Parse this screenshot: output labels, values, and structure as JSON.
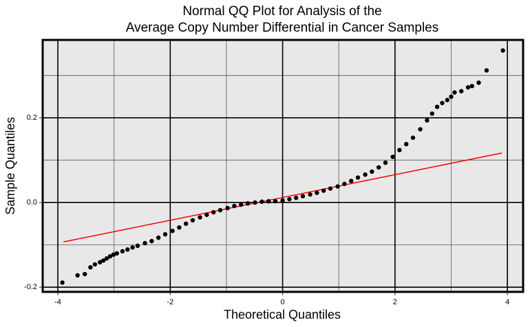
{
  "chart_data": {
    "type": "scatter",
    "title": [
      "Normal QQ Plot for Analysis of the",
      "Average Copy Number Differential in Cancer Samples"
    ],
    "x_label": "Theoretical Quantiles",
    "y_label": "Sample Quantiles",
    "x": [
      -3.92,
      -3.65,
      -3.52,
      -3.42,
      -3.34,
      -3.25,
      -3.19,
      -3.13,
      -3.07,
      -3.01,
      -2.95,
      -2.85,
      -2.76,
      -2.67,
      -2.58,
      -2.45,
      -2.33,
      -2.21,
      -2.09,
      -1.96,
      -1.84,
      -1.72,
      -1.6,
      -1.47,
      -1.35,
      -1.23,
      -1.11,
      -0.98,
      -0.86,
      -0.74,
      -0.62,
      -0.49,
      -0.37,
      -0.25,
      -0.13,
      0.0,
      0.12,
      0.24,
      0.36,
      0.49,
      0.61,
      0.73,
      0.85,
      0.98,
      1.1,
      1.22,
      1.34,
      1.47,
      1.59,
      1.71,
      1.83,
      1.96,
      2.08,
      2.2,
      2.32,
      2.45,
      2.57,
      2.66,
      2.75,
      2.84,
      2.93,
      3.0,
      3.06,
      3.18,
      3.3,
      3.37,
      3.49,
      3.63,
      3.92
    ],
    "values": [
      -0.189,
      -0.172,
      -0.169,
      -0.153,
      -0.146,
      -0.141,
      -0.137,
      -0.132,
      -0.127,
      -0.123,
      -0.12,
      -0.115,
      -0.111,
      -0.106,
      -0.102,
      -0.096,
      -0.091,
      -0.083,
      -0.075,
      -0.067,
      -0.059,
      -0.05,
      -0.042,
      -0.035,
      -0.029,
      -0.023,
      -0.018,
      -0.013,
      -0.008,
      -0.005,
      -0.002,
      0.0,
      0.002,
      0.003,
      0.003,
      0.005,
      0.008,
      0.011,
      0.015,
      0.019,
      0.023,
      0.028,
      0.033,
      0.038,
      0.044,
      0.051,
      0.059,
      0.066,
      0.073,
      0.083,
      0.094,
      0.108,
      0.124,
      0.138,
      0.153,
      0.173,
      0.194,
      0.21,
      0.226,
      0.235,
      0.242,
      0.25,
      0.26,
      0.263,
      0.272,
      0.275,
      0.283,
      0.312,
      0.359
    ],
    "color": "#000000",
    "reference_line": {
      "x": [
        -3.9,
        3.9
      ],
      "y": [
        -0.093,
        0.117
      ],
      "color": "#ff0000"
    },
    "xlim": [
      -4.27,
      4.28
    ],
    "ylim": [
      -0.211,
      0.384
    ],
    "xticks": [
      -4,
      -2,
      0,
      2,
      4
    ],
    "yticks": [
      -0.2,
      {
        "value": 0,
        "label": "0.0"
      },
      0.2
    ],
    "x_minor_grid": [
      -3,
      -1,
      1,
      3
    ],
    "y_minor_grid": [
      -0.1,
      0.1,
      0.3
    ],
    "grid": true
  }
}
